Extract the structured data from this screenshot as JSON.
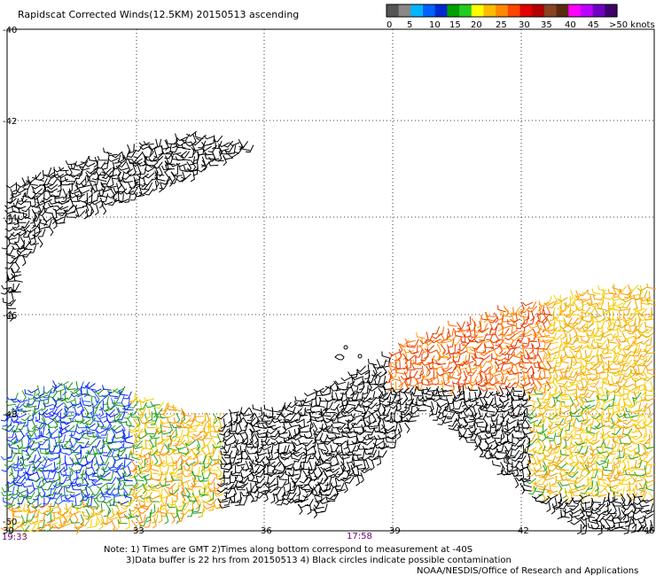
{
  "title": "Rapidscat Corrected Winds(12.5KM) 20150513 ascending",
  "colorbar": {
    "colors": [
      "#555555",
      "#888888",
      "#00b4ff",
      "#0060ff",
      "#0028d0",
      "#00a000",
      "#22cc22",
      "#ffff00",
      "#ffbb00",
      "#ff8800",
      "#ff4400",
      "#e00000",
      "#b00000",
      "#884422",
      "#5a2a10",
      "#ff00ff",
      "#bb00ff",
      "#7000c0",
      "#40006a"
    ],
    "labels": [
      "0",
      "5",
      "10",
      "15",
      "20",
      "25",
      "30",
      "35",
      "40",
      "45",
      ">50 knots"
    ]
  },
  "axes": {
    "lat_labels": [
      "-40",
      "-42",
      "-44",
      "-46",
      "-48",
      "-50"
    ],
    "lon_labels": [
      "30",
      "33",
      "36",
      "39",
      "42",
      "45"
    ]
  },
  "time_labels": [
    "19:33",
    "17:58"
  ],
  "notes": [
    "Note: 1) Times are GMT 2)Times along bottom correspond to measurement at -40S",
    "3)Data buffer is 22 hrs from 20150513 4) Black circles indicate possible contamination",
    "NOAA/NESDIS/Office of Research and Applications"
  ]
}
